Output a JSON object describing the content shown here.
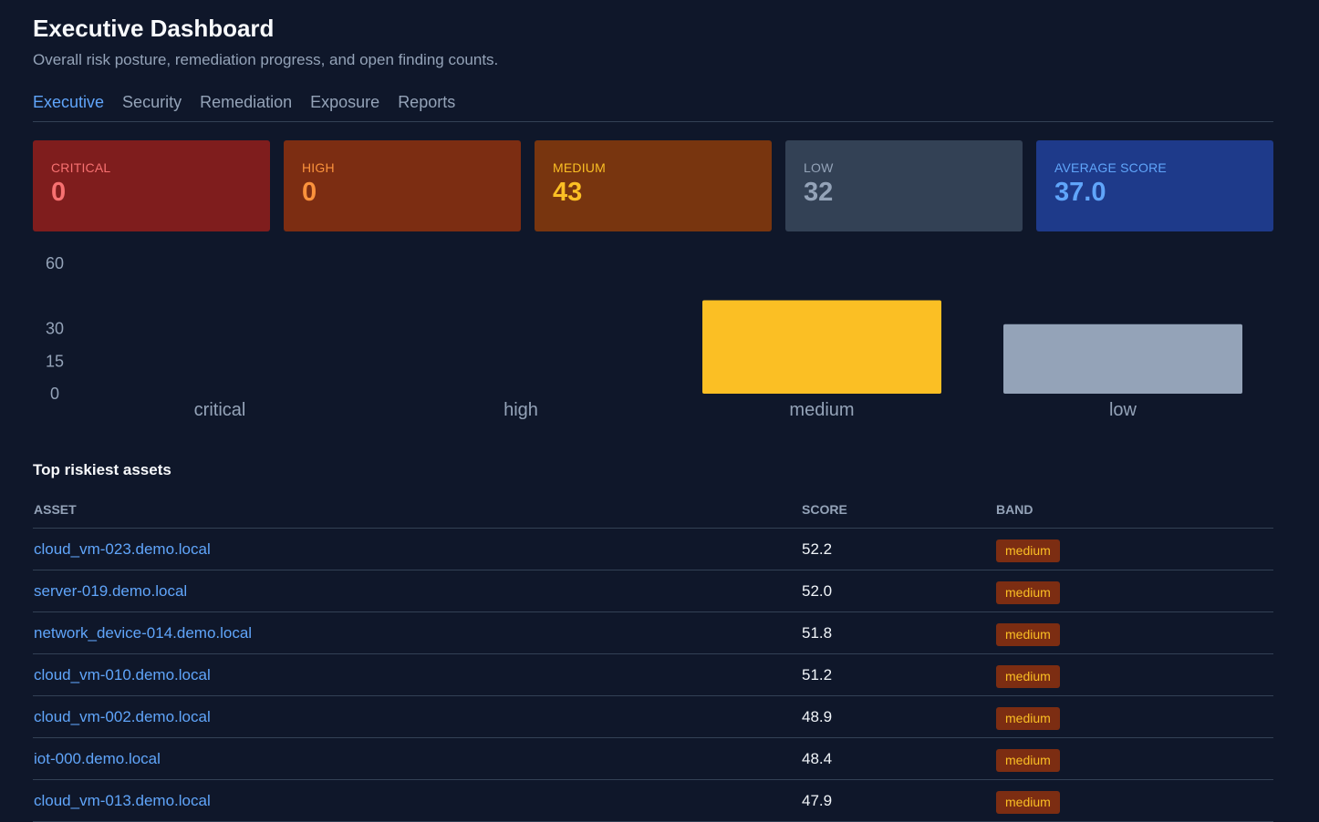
{
  "header": {
    "title": "Executive Dashboard",
    "subtitle": "Overall risk posture, remediation progress, and open finding counts."
  },
  "tabs": [
    {
      "label": "Executive",
      "active": true
    },
    {
      "label": "Security",
      "active": false
    },
    {
      "label": "Remediation",
      "active": false
    },
    {
      "label": "Exposure",
      "active": false
    },
    {
      "label": "Reports",
      "active": false
    }
  ],
  "cards": [
    {
      "label": "CRITICAL",
      "value": "0",
      "bg": "#7f1d1d",
      "fg": "#f87171"
    },
    {
      "label": "HIGH",
      "value": "0",
      "bg": "#7c2d12",
      "fg": "#fb923c"
    },
    {
      "label": "MEDIUM",
      "value": "43",
      "bg": "#78350f",
      "fg": "#fbbf24"
    },
    {
      "label": "LOW",
      "value": "32",
      "bg": "#334155",
      "fg": "#94a3b8"
    },
    {
      "label": "AVERAGE SCORE",
      "value": "37.0",
      "bg": "#1e3a8a",
      "fg": "#60a5fa"
    }
  ],
  "chart_data": {
    "type": "bar",
    "categories": [
      "critical",
      "high",
      "medium",
      "low"
    ],
    "values": [
      0,
      0,
      43,
      32
    ],
    "colors": [
      "#f87171",
      "#fb923c",
      "#fbbf24",
      "#94a3b8"
    ],
    "yticks": [
      0,
      15,
      30,
      60
    ],
    "ylim": [
      0,
      60
    ],
    "grid": false
  },
  "assets": {
    "title": "Top riskiest assets",
    "columns": [
      "ASSET",
      "SCORE",
      "BAND"
    ],
    "rows": [
      {
        "asset": "cloud_vm-023.demo.local",
        "score": "52.2",
        "band": "medium"
      },
      {
        "asset": "server-019.demo.local",
        "score": "52.0",
        "band": "medium"
      },
      {
        "asset": "network_device-014.demo.local",
        "score": "51.8",
        "band": "medium"
      },
      {
        "asset": "cloud_vm-010.demo.local",
        "score": "51.2",
        "band": "medium"
      },
      {
        "asset": "cloud_vm-002.demo.local",
        "score": "48.9",
        "band": "medium"
      },
      {
        "asset": "iot-000.demo.local",
        "score": "48.4",
        "band": "medium"
      },
      {
        "asset": "cloud_vm-013.demo.local",
        "score": "47.9",
        "band": "medium"
      }
    ]
  },
  "colors": {
    "background": "#0f172a",
    "accent": "#60a5fa",
    "badge_bg": "#7c2d12",
    "badge_fg": "#fbbf24"
  }
}
